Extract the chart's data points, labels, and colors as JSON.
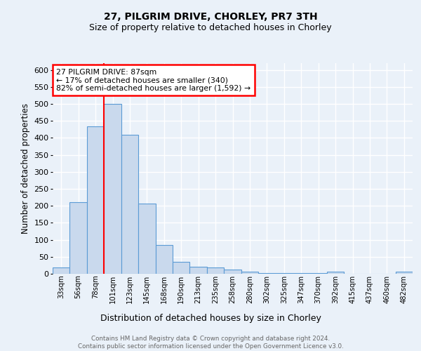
{
  "title1": "27, PILGRIM DRIVE, CHORLEY, PR7 3TH",
  "title2": "Size of property relative to detached houses in Chorley",
  "xlabel": "Distribution of detached houses by size in Chorley",
  "ylabel": "Number of detached properties",
  "bar_labels": [
    "33sqm",
    "56sqm",
    "78sqm",
    "101sqm",
    "123sqm",
    "145sqm",
    "168sqm",
    "190sqm",
    "213sqm",
    "235sqm",
    "258sqm",
    "280sqm",
    "302sqm",
    "325sqm",
    "347sqm",
    "370sqm",
    "392sqm",
    "415sqm",
    "437sqm",
    "460sqm",
    "482sqm"
  ],
  "bar_values": [
    18,
    211,
    435,
    500,
    410,
    207,
    84,
    36,
    21,
    18,
    12,
    7,
    2,
    2,
    2,
    2,
    6,
    1,
    1,
    1,
    6
  ],
  "bar_color": "#c9d9ed",
  "bar_edge_color": "#5b9bd5",
  "vline_x": 2.5,
  "vline_color": "red",
  "annotation_text": "27 PILGRIM DRIVE: 87sqm\n← 17% of detached houses are smaller (340)\n82% of semi-detached houses are larger (1,592) →",
  "annotation_box_color": "white",
  "annotation_box_edge": "red",
  "ylim": [
    0,
    620
  ],
  "yticks": [
    0,
    50,
    100,
    150,
    200,
    250,
    300,
    350,
    400,
    450,
    500,
    550,
    600
  ],
  "footer_text": "Contains HM Land Registry data © Crown copyright and database right 2024.\nContains public sector information licensed under the Open Government Licence v3.0.",
  "bg_color": "#eaf1f9",
  "plot_bg_color": "#eaf1f9",
  "grid_color": "white"
}
